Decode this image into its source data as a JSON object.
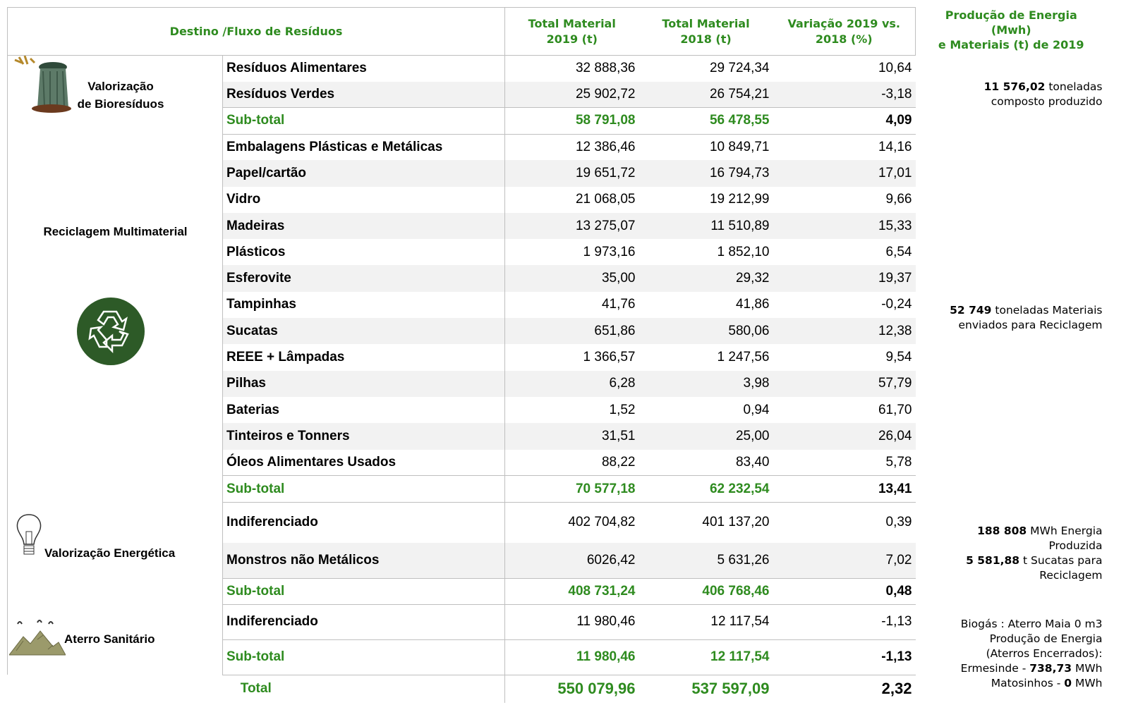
{
  "header": {
    "flow": "Destino /Fluxo de Resíduos",
    "total_2019": [
      "Total Material",
      "2019 (t)"
    ],
    "total_2018": [
      "Total Material",
      "2018 (t)"
    ],
    "variation": [
      "Variação 2019 vs.",
      "2018 (%)"
    ],
    "production": [
      "Produção de Energia",
      "(Mwh)",
      "e Materiais (t)  de 2019"
    ]
  },
  "groups": [
    {
      "label": [
        "Valorização",
        "de Bioresíduos"
      ],
      "rows": [
        {
          "name": "Resíduos Alimentares",
          "total_2019": "32 888,36",
          "total_2018": "29 724,34",
          "variation": "10,64"
        },
        {
          "name": "Resíduos Verdes",
          "total_2019": "25 902,72",
          "total_2018": "26 754,21",
          "variation": "-3,18"
        }
      ],
      "subtotal": {
        "name": "Sub-total",
        "total_2019": "58 791,08",
        "total_2018": "56 478,55",
        "variation": "4,09"
      },
      "note": [
        [
          {
            "text": "11 576,02",
            "bold": true
          },
          {
            "text": " toneladas"
          }
        ],
        [
          {
            "text": "composto produzido"
          }
        ]
      ]
    },
    {
      "label": [
        "Reciclagem Multimaterial"
      ],
      "rows": [
        {
          "name": "Embalagens Plásticas e Metálicas",
          "total_2019": "12 386,46",
          "total_2018": "10 849,71",
          "variation": "14,16"
        },
        {
          "name": "Papel/cartão",
          "total_2019": "19 651,72",
          "total_2018": "16 794,73",
          "variation": "17,01"
        },
        {
          "name": "Vidro",
          "total_2019": "21 068,05",
          "total_2018": "19 212,99",
          "variation": "9,66"
        },
        {
          "name": "Madeiras",
          "total_2019": "13 275,07",
          "total_2018": "11 510,89",
          "variation": "15,33"
        },
        {
          "name": "Plásticos",
          "total_2019": "1 973,16",
          "total_2018": "1 852,10",
          "variation": "6,54"
        },
        {
          "name": "Esferovite",
          "total_2019": "35,00",
          "total_2018": "29,32",
          "variation": "19,37"
        },
        {
          "name": "Tampinhas",
          "total_2019": "41,76",
          "total_2018": "41,86",
          "variation": "-0,24"
        },
        {
          "name": "Sucatas",
          "total_2019": "651,86",
          "total_2018": "580,06",
          "variation": "12,38"
        },
        {
          "name": "REEE + Lâmpadas",
          "total_2019": "1 366,57",
          "total_2018": "1 247,56",
          "variation": "9,54"
        },
        {
          "name": "Pilhas",
          "total_2019": "6,28",
          "total_2018": "3,98",
          "variation": "57,79"
        },
        {
          "name": "Baterias",
          "total_2019": "1,52",
          "total_2018": "0,94",
          "variation": "61,70"
        },
        {
          "name": "Tinteiros e Tonners",
          "total_2019": "31,51",
          "total_2018": "25,00",
          "variation": "26,04"
        },
        {
          "name": "Óleos Alimentares Usados",
          "total_2019": "88,22",
          "total_2018": "83,40",
          "variation": "5,78"
        }
      ],
      "subtotal": {
        "name": "Sub-total",
        "total_2019": "70 577,18",
        "total_2018": "62 232,54",
        "variation": "13,41"
      },
      "note": [
        [
          {
            "text": "52 749",
            "bold": true
          },
          {
            "text": " toneladas Materiais"
          }
        ],
        [
          {
            "text": "enviados para Reciclagem"
          }
        ]
      ]
    },
    {
      "label": [
        "Valorização Energética"
      ],
      "rows": [
        {
          "name": "Indiferenciado",
          "total_2019": "402 704,82",
          "total_2018": "401 137,20",
          "variation": "0,39"
        },
        {
          "name": "Monstros não Metálicos",
          "total_2019": "6026,42",
          "total_2018": "5 631,26",
          "variation": "7,02"
        }
      ],
      "subtotal": {
        "name": "Sub-total",
        "total_2019": "408 731,24",
        "total_2018": "406 768,46",
        "variation": "0,48"
      },
      "note": [
        [
          {
            "text": "188 808",
            "bold": true
          },
          {
            "text": " MWh Energia"
          }
        ],
        [
          {
            "text": "Produzida"
          }
        ],
        [
          {
            "text": "5 581,88",
            "bold": true
          },
          {
            "text": " t Sucatas para"
          }
        ],
        [
          {
            "text": "Reciclagem"
          }
        ]
      ]
    },
    {
      "label": [
        "Aterro Sanitário"
      ],
      "rows": [
        {
          "name": "Indiferenciado",
          "total_2019": "11 980,46",
          "total_2018": "12 117,54",
          "variation": "-1,13"
        }
      ],
      "subtotal": {
        "name": "Sub-total",
        "total_2019": "11 980,46",
        "total_2018": "12 117,54",
        "variation": "-1,13"
      },
      "note": [
        [
          {
            "text": "Biogás : Aterro Maia 0 m3"
          }
        ],
        [
          {
            "text": "Produção de Energia"
          }
        ],
        [
          {
            "text": "(Aterros Encerrados):"
          }
        ],
        [
          {
            "text": "Ermesinde - "
          },
          {
            "text": "738,73",
            "bold": true
          },
          {
            "text": " MWh"
          }
        ],
        [
          {
            "text": "Matosinhos - "
          },
          {
            "text": "0",
            "bold": true
          },
          {
            "text": " MWh"
          }
        ]
      ]
    }
  ],
  "total": {
    "name": "Total",
    "total_2019": "550 079,96",
    "total_2018": "537 597,09",
    "variation": "2,32"
  }
}
